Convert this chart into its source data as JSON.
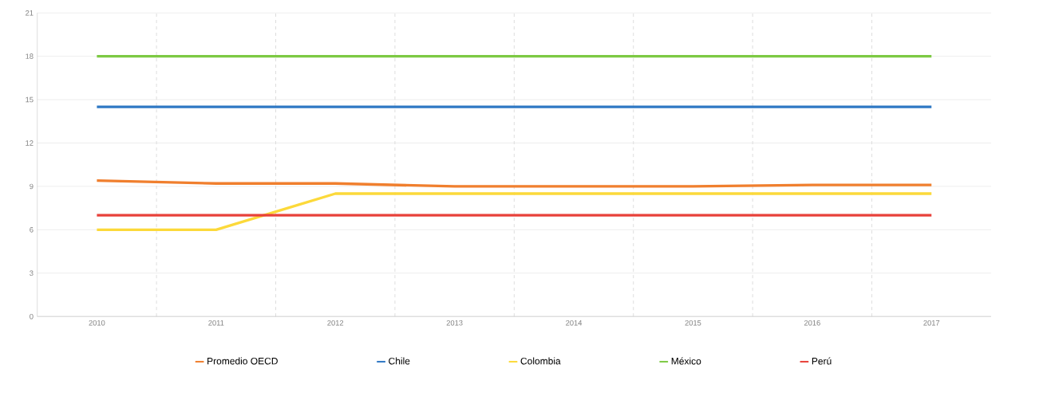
{
  "chart_data": {
    "type": "line",
    "categories": [
      "2010",
      "2011",
      "2012",
      "2013",
      "2014",
      "2015",
      "2016",
      "2017"
    ],
    "series": [
      {
        "name": "Promedio OECD",
        "color": "#f07f2e",
        "values": [
          9.4,
          9.2,
          9.2,
          9.0,
          9.0,
          9.0,
          9.1,
          9.1
        ]
      },
      {
        "name": "Chile",
        "color": "#2f78c4",
        "values": [
          14.5,
          14.5,
          14.5,
          14.5,
          14.5,
          14.5,
          14.5,
          14.5
        ]
      },
      {
        "name": "Colombia",
        "color": "#fcd93a",
        "values": [
          6,
          6,
          8.5,
          8.5,
          8.5,
          8.5,
          8.5,
          8.5
        ]
      },
      {
        "name": "México",
        "color": "#7dc943",
        "values": [
          18,
          18,
          18,
          18,
          18,
          18,
          18,
          18
        ]
      },
      {
        "name": "Perú",
        "color": "#e8413a",
        "values": [
          7,
          7,
          7,
          7,
          7,
          7,
          7,
          7
        ]
      }
    ],
    "ylim": [
      0,
      21
    ],
    "yticks": [
      0,
      3,
      6,
      9,
      12,
      15,
      18,
      21
    ],
    "grid": true,
    "legend": "bottom",
    "marker": "none",
    "line_style": "solid"
  }
}
